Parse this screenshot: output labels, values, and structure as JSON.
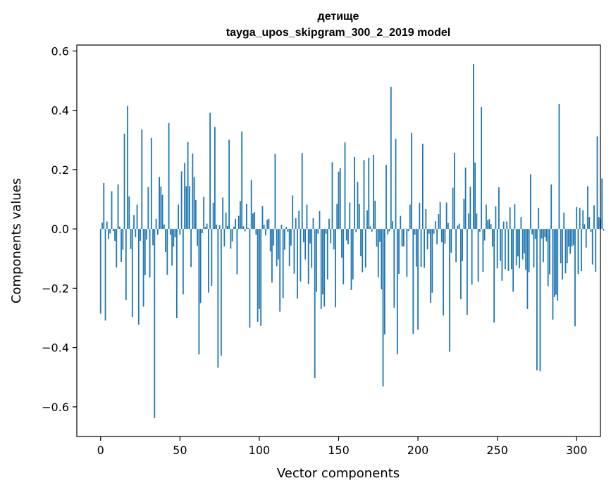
{
  "chart_data": {
    "type": "bar",
    "title_line1": "детище",
    "title_line2": "tayga_upos_skipgram_300_2_2019 model",
    "xlabel": "Vector components",
    "ylabel": "Components values",
    "xlim": [
      -15,
      315
    ],
    "ylim": [
      -0.7,
      0.62
    ],
    "xticks": [
      0,
      50,
      100,
      150,
      200,
      250,
      300
    ],
    "xtick_labels": [
      "0",
      "50",
      "100",
      "150",
      "200",
      "250",
      "300"
    ],
    "yticks": [
      -0.6,
      -0.4,
      -0.2,
      0.0,
      0.2,
      0.4,
      0.6
    ],
    "ytick_labels": [
      "−0.6",
      "−0.4",
      "−0.2",
      "0.0",
      "0.2",
      "0.4",
      "0.6"
    ],
    "bar_color": "#1f77b4",
    "values": [
      -0.286,
      0.021,
      0.155,
      -0.309,
      0.025,
      -0.034,
      -0.015,
      0.127,
      -0.007,
      -0.04,
      -0.13,
      0.15,
      0.008,
      -0.111,
      -0.07,
      0.321,
      -0.24,
      0.415,
      0.109,
      -0.068,
      -0.297,
      0.047,
      -0.028,
      0.082,
      -0.323,
      -0.04,
      0.336,
      -0.262,
      -0.156,
      -0.036,
      0.141,
      -0.164,
      0.307,
      -0.055,
      -0.638,
      0.034,
      -0.02,
      0.175,
      0.143,
      0.115,
      0.015,
      -0.078,
      -0.155,
      0.357,
      -0.02,
      -0.124,
      -0.06,
      -0.028,
      -0.301,
      0.082,
      -0.02,
      0.194,
      -0.221,
      0.223,
      0.144,
      0.293,
      0.145,
      -0.128,
      0.254,
      0.175,
      0.098,
      -0.057,
      -0.423,
      -0.25,
      -0.014,
      0.108,
      0.006,
      0.018,
      -0.215,
      0.392,
      -0.192,
      0.088,
      0.344,
      0.014,
      -0.468,
      0.012,
      -0.428,
      0.106,
      -0.059,
      0.055,
      0.01,
      0.301,
      -0.067,
      -0.042,
      0.008,
      0.034,
      -0.153,
      0.044,
      0.094,
      0.329,
      0.009,
      -0.008,
      0.084,
      0.003,
      -0.333,
      0.165,
      0.052,
      0.057,
      -0.02,
      -0.313,
      -0.27,
      -0.327,
      0.077,
      0.014,
      -0.022,
      0.031,
      0.034,
      -0.076,
      -0.181,
      -0.056,
      0.253,
      -0.126,
      -0.103,
      -0.279,
      0.014,
      -0.233,
      -0.07,
      0.007,
      -0.01,
      -0.126,
      -0.056,
      0.113,
      -0.151,
      0.036,
      -0.235,
      0.061,
      -0.177,
      0.256,
      -0.045,
      -0.103,
      0.082,
      -0.186,
      -0.049,
      -0.131,
      0.036,
      -0.503,
      -0.212,
      -0.016,
      0.06,
      -0.27,
      -0.221,
      -0.262,
      -0.016,
      -0.17,
      0.034,
      -0.048,
      0.225,
      -0.069,
      -0.264,
      0.084,
      0.193,
      0.205,
      -0.097,
      -0.187,
      0.292,
      -0.039,
      -0.052,
      0.089,
      -0.206,
      -0.17,
      0.243,
      -0.011,
      0.158,
      0.084,
      -0.092,
      -0.146,
      0.232,
      -0.13,
      0.063,
      0.24,
      0.009,
      -0.009,
      0.25,
      0.095,
      -0.06,
      -0.163,
      -0.044,
      -0.204,
      -0.531,
      -0.356,
      0.216,
      -0.018,
      -0.008,
      0.479,
      0.026,
      -0.266,
      0.304,
      -0.423,
      -0.152,
      0.044,
      -0.06,
      -0.059,
      0.001,
      -0.162,
      -0.007,
      0.082,
      0.324,
      -0.354,
      -0.02,
      -0.127,
      -0.34,
      0.088,
      -0.128,
      0.287,
      -0.131,
      0.067,
      -0.069,
      -0.016,
      -0.249,
      -0.215,
      -0.016,
      0.026,
      -0.052,
      0.05,
      0.091,
      -0.045,
      -0.292,
      -0.05,
      0.089,
      0.02,
      -0.414,
      -0.08,
      0.139,
      0.257,
      -0.112,
      0.011,
      0.018,
      -0.237,
      -0.109,
      0.101,
      0.207,
      -0.29,
      0.052,
      0.142,
      -0.188,
      0.556,
      0.224,
      0.052,
      -0.178,
      -0.009,
      0.411,
      -0.145,
      -0.039,
      0.082,
      0.029,
      0.033,
      0.016,
      -0.06,
      -0.316,
      0.076,
      -0.133,
      0.14,
      -0.108,
      -0.175,
      0.025,
      -0.136,
      0.025,
      -0.142,
      0.073,
      -0.136,
      -0.212,
      0.083,
      -0.123,
      -0.093,
      -0.133,
      0.04,
      -0.103,
      -0.082,
      -0.138,
      -0.27,
      -0.146,
      0.184,
      -0.019,
      -0.13,
      -0.034,
      -0.477,
      0.071,
      -0.48,
      -0.032,
      -0.112,
      -0.028,
      -0.042,
      -0.193,
      -0.153,
      0.15,
      -0.306,
      -0.23,
      -0.222,
      -0.242,
      0.421,
      -0.116,
      -0.171,
      0.055,
      -0.15,
      -0.116,
      -0.06,
      -0.084,
      -0.059,
      -0.055,
      -0.328,
      0.074,
      -0.152,
      0.071,
      -0.142,
      0.063,
      0.016,
      -0.063,
      0.144,
      0.04,
      -0.01,
      -0.12,
      0.08,
      -0.145,
      0.312,
      0.04,
      0.035,
      0.17,
      -0.006
    ]
  }
}
